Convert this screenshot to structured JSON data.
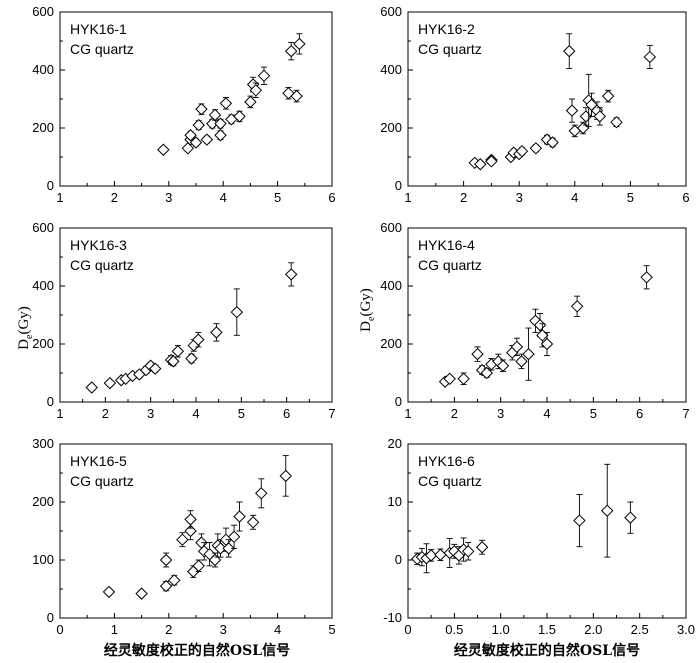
{
  "x_axis_label": "经灵敏度校正的自然OSL信号",
  "y_axis_label": {
    "main": "D",
    "sub": "e",
    "unit": "(Gy)"
  },
  "chart_data": [
    {
      "type": "scatter",
      "title": "HYK16-1",
      "subtitle": "CG quartz",
      "xlim": [
        1,
        6
      ],
      "ylim": [
        0,
        600
      ],
      "xticks": [
        "1",
        "2",
        "3",
        "4",
        "5",
        "6"
      ],
      "yticks": [
        "0",
        "200",
        "400",
        "600"
      ],
      "points": [
        {
          "x": 2.9,
          "y": 125,
          "err": 10
        },
        {
          "x": 3.35,
          "y": 130,
          "err": 10
        },
        {
          "x": 3.4,
          "y": 160,
          "err": 12
        },
        {
          "x": 3.4,
          "y": 175,
          "err": 12
        },
        {
          "x": 3.5,
          "y": 150,
          "err": 12
        },
        {
          "x": 3.55,
          "y": 210,
          "err": 15
        },
        {
          "x": 3.6,
          "y": 265,
          "err": 18
        },
        {
          "x": 3.7,
          "y": 160,
          "err": 12
        },
        {
          "x": 3.8,
          "y": 215,
          "err": 15
        },
        {
          "x": 3.85,
          "y": 245,
          "err": 18
        },
        {
          "x": 3.95,
          "y": 175,
          "err": 15
        },
        {
          "x": 3.95,
          "y": 215,
          "err": 15
        },
        {
          "x": 4.05,
          "y": 285,
          "err": 20
        },
        {
          "x": 4.15,
          "y": 230,
          "err": 15
        },
        {
          "x": 4.3,
          "y": 240,
          "err": 18
        },
        {
          "x": 4.5,
          "y": 290,
          "err": 20
        },
        {
          "x": 4.55,
          "y": 350,
          "err": 25
        },
        {
          "x": 4.6,
          "y": 330,
          "err": 25
        },
        {
          "x": 4.75,
          "y": 380,
          "err": 30
        },
        {
          "x": 5.2,
          "y": 320,
          "err": 20
        },
        {
          "x": 5.25,
          "y": 465,
          "err": 30
        },
        {
          "x": 5.35,
          "y": 310,
          "err": 20
        },
        {
          "x": 5.4,
          "y": 490,
          "err": 35
        }
      ]
    },
    {
      "type": "scatter",
      "title": "HYK16-2",
      "subtitle": "CG quartz",
      "xlim": [
        1,
        6
      ],
      "ylim": [
        0,
        600
      ],
      "xticks": [
        "1",
        "2",
        "3",
        "4",
        "5",
        "6"
      ],
      "yticks": [
        "0",
        "200",
        "400",
        "600"
      ],
      "points": [
        {
          "x": 2.2,
          "y": 80,
          "err": 10
        },
        {
          "x": 2.3,
          "y": 75,
          "err": 10
        },
        {
          "x": 2.5,
          "y": 90,
          "err": 10
        },
        {
          "x": 2.5,
          "y": 85,
          "err": 10
        },
        {
          "x": 2.85,
          "y": 100,
          "err": 10
        },
        {
          "x": 2.9,
          "y": 115,
          "err": 12
        },
        {
          "x": 3.0,
          "y": 110,
          "err": 10
        },
        {
          "x": 3.05,
          "y": 120,
          "err": 12
        },
        {
          "x": 3.3,
          "y": 130,
          "err": 12
        },
        {
          "x": 3.5,
          "y": 160,
          "err": 15
        },
        {
          "x": 3.6,
          "y": 150,
          "err": 15
        },
        {
          "x": 3.9,
          "y": 465,
          "err": 60
        },
        {
          "x": 3.95,
          "y": 260,
          "err": 40
        },
        {
          "x": 4.0,
          "y": 190,
          "err": 20
        },
        {
          "x": 4.15,
          "y": 200,
          "err": 20
        },
        {
          "x": 4.2,
          "y": 240,
          "err": 30
        },
        {
          "x": 4.25,
          "y": 295,
          "err": 90
        },
        {
          "x": 4.3,
          "y": 280,
          "err": 40
        },
        {
          "x": 4.4,
          "y": 260,
          "err": 30
        },
        {
          "x": 4.45,
          "y": 240,
          "err": 30
        },
        {
          "x": 4.6,
          "y": 310,
          "err": 20
        },
        {
          "x": 4.75,
          "y": 220,
          "err": 15
        },
        {
          "x": 5.35,
          "y": 445,
          "err": 40
        }
      ]
    },
    {
      "type": "scatter",
      "title": "HYK16-3",
      "subtitle": "CG quartz",
      "xlim": [
        1,
        7
      ],
      "ylim": [
        0,
        600
      ],
      "xticks": [
        "1",
        "2",
        "3",
        "4",
        "5",
        "6",
        "7"
      ],
      "yticks": [
        "0",
        "200",
        "400",
        "600"
      ],
      "points": [
        {
          "x": 1.7,
          "y": 50,
          "err": 10
        },
        {
          "x": 2.1,
          "y": 65,
          "err": 10
        },
        {
          "x": 2.35,
          "y": 75,
          "err": 10
        },
        {
          "x": 2.45,
          "y": 80,
          "err": 10
        },
        {
          "x": 2.6,
          "y": 90,
          "err": 10
        },
        {
          "x": 2.75,
          "y": 95,
          "err": 12
        },
        {
          "x": 2.9,
          "y": 110,
          "err": 12
        },
        {
          "x": 3.0,
          "y": 125,
          "err": 12
        },
        {
          "x": 3.1,
          "y": 115,
          "err": 12
        },
        {
          "x": 3.45,
          "y": 145,
          "err": 15
        },
        {
          "x": 3.5,
          "y": 140,
          "err": 15
        },
        {
          "x": 3.6,
          "y": 175,
          "err": 20
        },
        {
          "x": 3.9,
          "y": 150,
          "err": 15
        },
        {
          "x": 3.95,
          "y": 195,
          "err": 20
        },
        {
          "x": 4.05,
          "y": 215,
          "err": 25
        },
        {
          "x": 4.45,
          "y": 240,
          "err": 30
        },
        {
          "x": 4.9,
          "y": 310,
          "err": 80
        },
        {
          "x": 6.1,
          "y": 440,
          "err": 40
        }
      ]
    },
    {
      "type": "scatter",
      "title": "HYK16-4",
      "subtitle": "CG quartz",
      "xlim": [
        1,
        7
      ],
      "ylim": [
        0,
        600
      ],
      "xticks": [
        "1",
        "2",
        "3",
        "4",
        "5",
        "6",
        "7"
      ],
      "yticks": [
        "0",
        "200",
        "400",
        "600"
      ],
      "points": [
        {
          "x": 1.8,
          "y": 70,
          "err": 10
        },
        {
          "x": 1.9,
          "y": 80,
          "err": 10
        },
        {
          "x": 2.2,
          "y": 80,
          "err": 20
        },
        {
          "x": 2.5,
          "y": 165,
          "err": 25
        },
        {
          "x": 2.6,
          "y": 110,
          "err": 15
        },
        {
          "x": 2.7,
          "y": 100,
          "err": 15
        },
        {
          "x": 2.8,
          "y": 130,
          "err": 20
        },
        {
          "x": 2.95,
          "y": 140,
          "err": 25
        },
        {
          "x": 3.05,
          "y": 125,
          "err": 20
        },
        {
          "x": 3.25,
          "y": 170,
          "err": 25
        },
        {
          "x": 3.35,
          "y": 190,
          "err": 30
        },
        {
          "x": 3.45,
          "y": 140,
          "err": 25
        },
        {
          "x": 3.6,
          "y": 165,
          "err": 90
        },
        {
          "x": 3.75,
          "y": 280,
          "err": 40
        },
        {
          "x": 3.85,
          "y": 265,
          "err": 40
        },
        {
          "x": 3.9,
          "y": 230,
          "err": 40
        },
        {
          "x": 4.0,
          "y": 200,
          "err": 40
        },
        {
          "x": 4.65,
          "y": 330,
          "err": 35
        },
        {
          "x": 6.15,
          "y": 430,
          "err": 40
        }
      ]
    },
    {
      "type": "scatter",
      "title": "HYK16-5",
      "subtitle": "CG quartz",
      "xlim": [
        0,
        5
      ],
      "ylim": [
        0,
        300
      ],
      "xticks": [
        "0",
        "1",
        "2",
        "3",
        "4",
        "5"
      ],
      "yticks": [
        "0",
        "100",
        "200",
        "300"
      ],
      "points": [
        {
          "x": 0.9,
          "y": 45,
          "err": 5
        },
        {
          "x": 1.5,
          "y": 42,
          "err": 5
        },
        {
          "x": 1.95,
          "y": 100,
          "err": 12
        },
        {
          "x": 1.95,
          "y": 55,
          "err": 8
        },
        {
          "x": 2.1,
          "y": 65,
          "err": 8
        },
        {
          "x": 2.25,
          "y": 135,
          "err": 12
        },
        {
          "x": 2.4,
          "y": 150,
          "err": 15
        },
        {
          "x": 2.4,
          "y": 170,
          "err": 15
        },
        {
          "x": 2.45,
          "y": 80,
          "err": 10
        },
        {
          "x": 2.55,
          "y": 90,
          "err": 10
        },
        {
          "x": 2.6,
          "y": 130,
          "err": 15
        },
        {
          "x": 2.65,
          "y": 115,
          "err": 15
        },
        {
          "x": 2.75,
          "y": 110,
          "err": 20
        },
        {
          "x": 2.85,
          "y": 100,
          "err": 12
        },
        {
          "x": 2.9,
          "y": 125,
          "err": 20
        },
        {
          "x": 2.95,
          "y": 120,
          "err": 15
        },
        {
          "x": 3.05,
          "y": 135,
          "err": 20
        },
        {
          "x": 3.1,
          "y": 120,
          "err": 15
        },
        {
          "x": 3.2,
          "y": 140,
          "err": 20
        },
        {
          "x": 3.3,
          "y": 175,
          "err": 25
        },
        {
          "x": 3.55,
          "y": 165,
          "err": 12
        },
        {
          "x": 3.7,
          "y": 215,
          "err": 25
        },
        {
          "x": 4.15,
          "y": 245,
          "err": 35
        }
      ]
    },
    {
      "type": "scatter",
      "title": "HYK16-6",
      "subtitle": "CG quartz",
      "xlim": [
        0,
        3
      ],
      "ylim": [
        -10,
        20
      ],
      "xticks": [
        "0",
        "0.5",
        "1.0",
        "1.5",
        "2.0",
        "2.5",
        "3.0"
      ],
      "yticks": [
        "-10",
        "0",
        "10",
        "20"
      ],
      "points": [
        {
          "x": 0.1,
          "y": 0.2,
          "err": 1
        },
        {
          "x": 0.15,
          "y": 0.5,
          "err": 1.5
        },
        {
          "x": 0.2,
          "y": 0.3,
          "err": 2.5
        },
        {
          "x": 0.25,
          "y": 0.8,
          "err": 1
        },
        {
          "x": 0.35,
          "y": 0.9,
          "err": 1
        },
        {
          "x": 0.45,
          "y": 1.2,
          "err": 2.5
        },
        {
          "x": 0.5,
          "y": 1.5,
          "err": 1.2
        },
        {
          "x": 0.55,
          "y": 0.8,
          "err": 1.5
        },
        {
          "x": 0.6,
          "y": 1.8,
          "err": 2
        },
        {
          "x": 0.65,
          "y": 1.5,
          "err": 1.5
        },
        {
          "x": 0.8,
          "y": 2.2,
          "err": 1.2
        },
        {
          "x": 1.85,
          "y": 6.8,
          "err": 4.5
        },
        {
          "x": 2.15,
          "y": 8.5,
          "err": 8
        },
        {
          "x": 2.4,
          "y": 7.3,
          "err": 2.7
        }
      ]
    }
  ]
}
